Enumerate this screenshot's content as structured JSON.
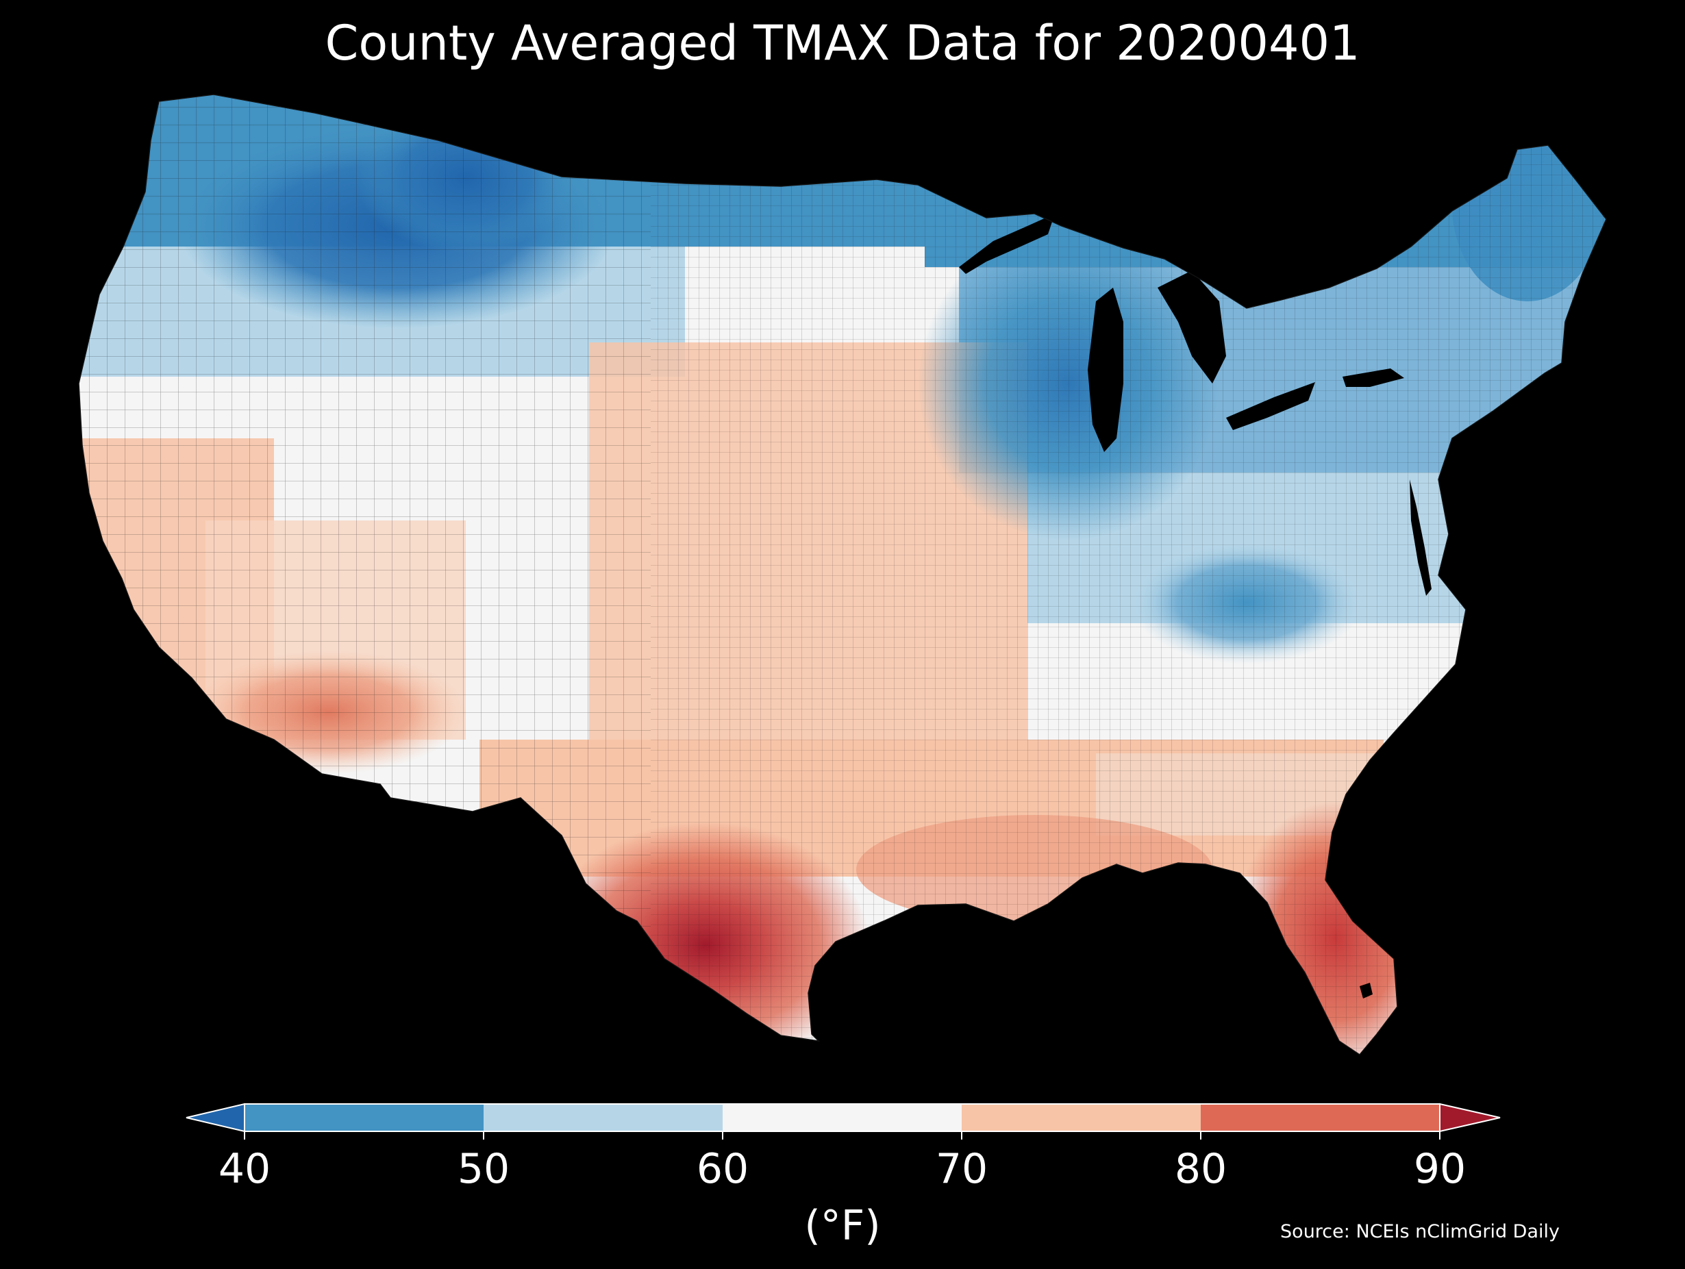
{
  "title": "County Averaged TMAX Data for 20200401",
  "colorbar": {
    "ticks": [
      "40",
      "50",
      "60",
      "70",
      "80",
      "90"
    ],
    "unit": "(°F)",
    "extend": "both",
    "bins": [
      {
        "range": "<40",
        "color": "#2166ac"
      },
      {
        "range": "40-50",
        "color": "#4393c3"
      },
      {
        "range": "50-60",
        "color": "#b6d6e8"
      },
      {
        "range": "60-70",
        "color": "#f5f5f5"
      },
      {
        "range": "70-80",
        "color": "#f7c4a8"
      },
      {
        "range": "80-90",
        "color": "#de6a55"
      },
      {
        "range": ">90",
        "color": "#a11a2c"
      }
    ]
  },
  "source": "Source: NCEIs nClimGrid Daily",
  "colors": {
    "background": "#000000",
    "text": "#ffffff",
    "county_borders": "#1a1a1a",
    "water": "#000000"
  }
}
